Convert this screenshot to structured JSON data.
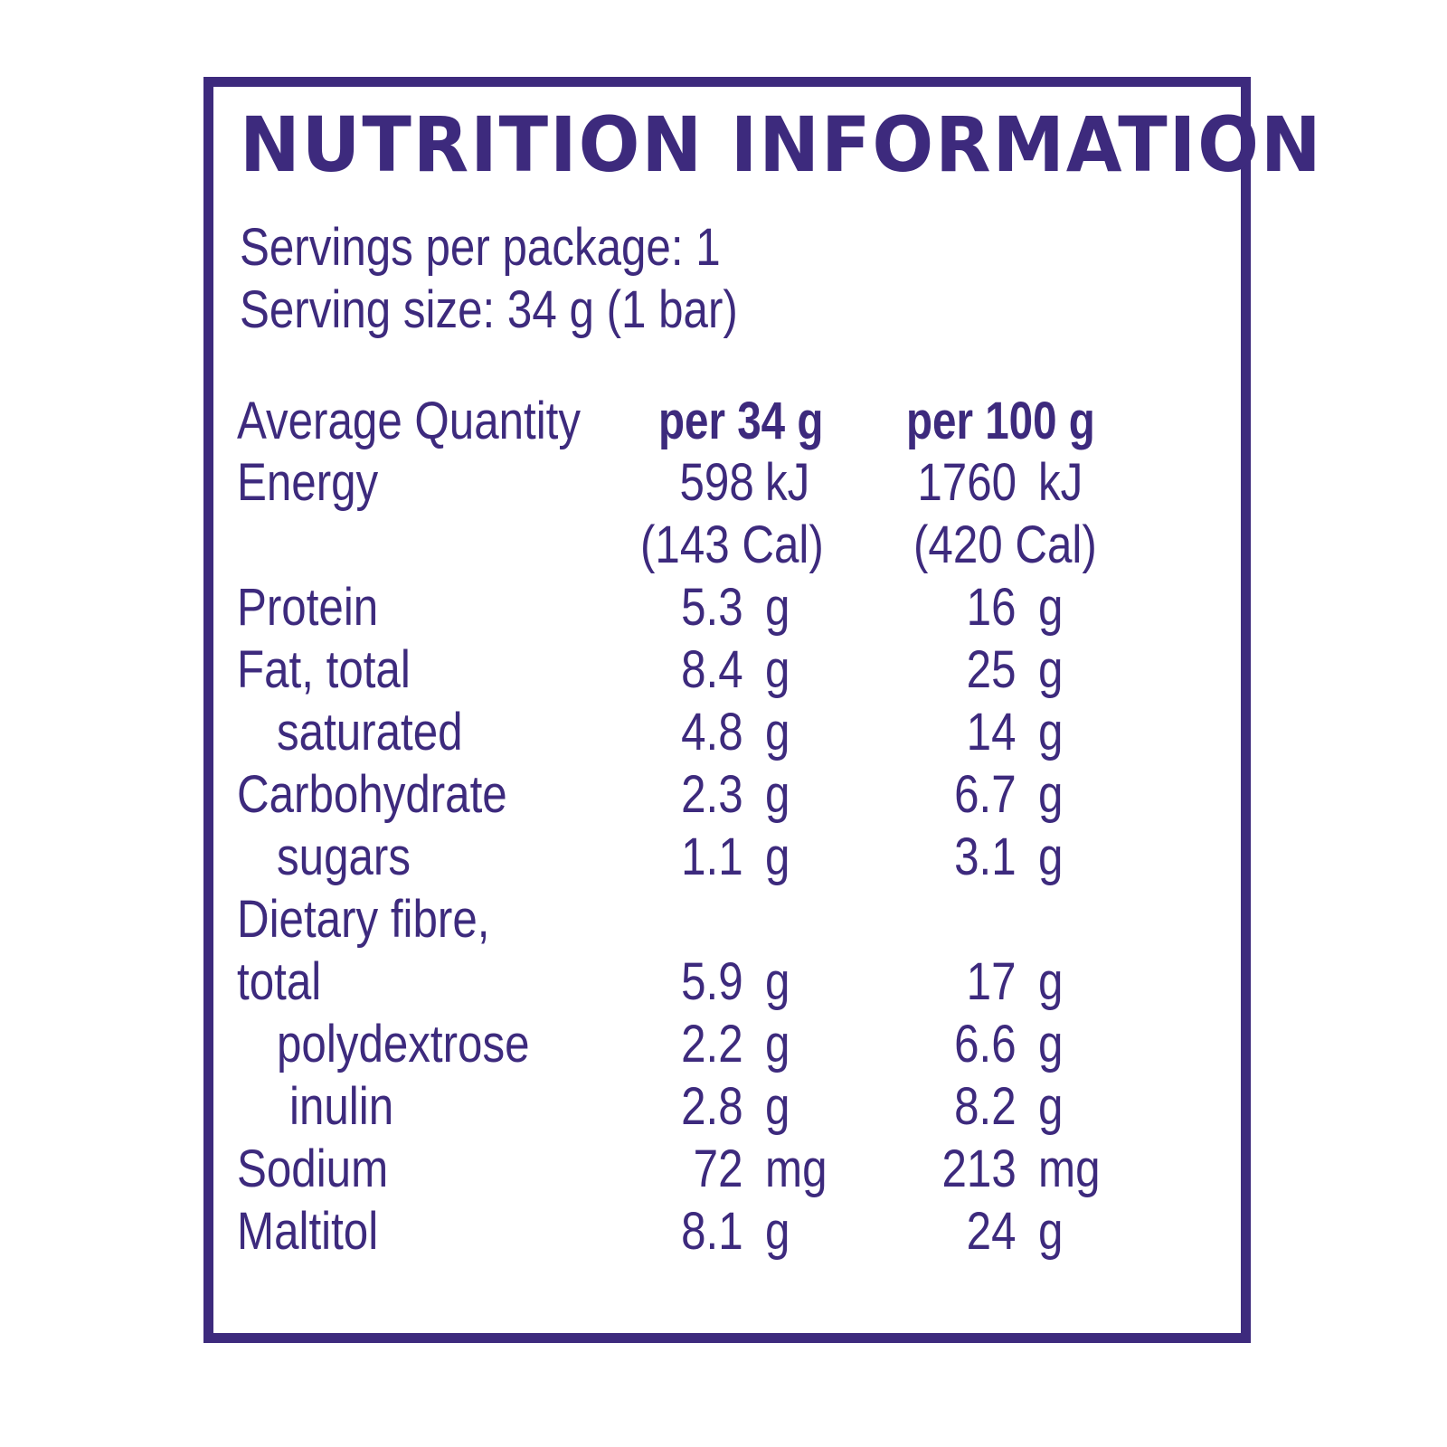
{
  "label": {
    "title": "NUTRITION INFORMATION",
    "servings_per_package": "Servings per package: 1",
    "serving_size": "Serving size: 34 g (1 bar)",
    "header": {
      "name": "Average Quantity",
      "col1": "per 34 g",
      "col2": "per 100 g"
    },
    "energy": {
      "name": "Energy",
      "v1": "598",
      "u1": "kJ",
      "v2": "1760",
      "u2": "kJ",
      "cal1": "(143  Cal)",
      "cal2": "(420  Cal)"
    },
    "rows": [
      {
        "name": "Protein",
        "v1": "5.3",
        "u1": "g",
        "v2": "16",
        "u2": "g"
      },
      {
        "name": "Fat, total",
        "v1": "8.4",
        "u1": "g",
        "v2": "25",
        "u2": "g"
      },
      {
        "name": "saturated",
        "v1": "4.8",
        "u1": "g",
        "v2": "14",
        "u2": "g"
      },
      {
        "name": "Carbohydrate",
        "v1": "2.3",
        "u1": "g",
        "v2": "6.7",
        "u2": "g"
      },
      {
        "name": "sugars",
        "v1": "1.1",
        "u1": "g",
        "v2": "3.1",
        "u2": "g"
      },
      {
        "name": "Dietary fibre,"
      },
      {
        "name": "total",
        "v1": "5.9",
        "u1": "g",
        "v2": "17",
        "u2": "g"
      },
      {
        "name": "polydextrose",
        "v1": "2.2",
        "u1": "g",
        "v2": "6.6",
        "u2": "g"
      },
      {
        "name": "inulin",
        "v1": "2.8",
        "u1": "g",
        "v2": "8.2",
        "u2": "g"
      },
      {
        "name": "Sodium",
        "v1": "72",
        "u1": "mg",
        "v2": "213",
        "u2": "mg"
      },
      {
        "name": "Maltitol",
        "v1": "8.1",
        "u1": "g",
        "v2": "24",
        "u2": "g"
      }
    ]
  },
  "colors": {
    "ink": "#3d2a7d",
    "background": "#ffffff"
  }
}
